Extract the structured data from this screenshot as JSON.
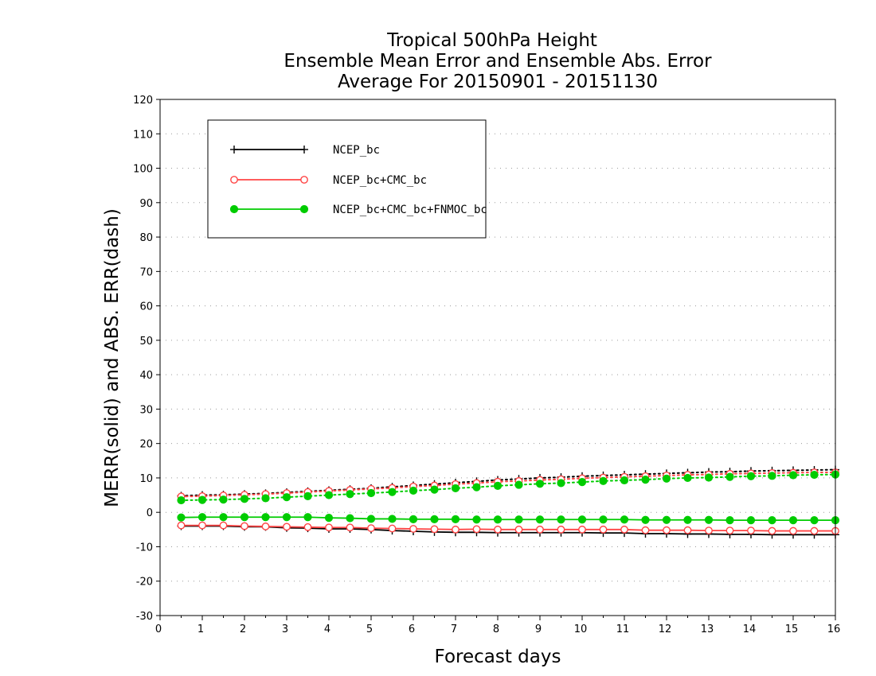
{
  "chart_data": {
    "type": "line",
    "title_lines": [
      "Tropical 500hPa Height",
      "Ensemble Mean Error and Ensemble Abs. Error",
      "Average For 20150901 - 20151130"
    ],
    "xlabel": "Forecast days",
    "ylabel": "MERR(solid) and ABS. ERR(dash)",
    "xlim": [
      0,
      16
    ],
    "ylim": [
      -30,
      120
    ],
    "xticks": [
      "0",
      "1",
      "2",
      "3",
      "4",
      "5",
      "6",
      "7",
      "8",
      "9",
      "10",
      "11",
      "12",
      "13",
      "14",
      "15",
      "16"
    ],
    "yticks": [
      "-30",
      "-20",
      "-10",
      "0",
      "10",
      "20",
      "30",
      "40",
      "50",
      "60",
      "70",
      "80",
      "90",
      "100",
      "110",
      "120"
    ],
    "grid": "horizontal dotted",
    "legend_position": "top-left",
    "x": [
      0.5,
      1,
      1.5,
      2,
      2.5,
      3,
      3.5,
      4,
      4.5,
      5,
      5.5,
      6,
      6.5,
      7,
      7.5,
      8,
      8.5,
      9,
      9.5,
      10,
      10.5,
      11,
      11.5,
      12,
      12.5,
      13,
      13.5,
      14,
      14.5,
      15,
      15.5,
      16
    ],
    "series": [
      {
        "name": "NCEP_bc",
        "color": "#000000",
        "marker": "plus",
        "mean_error": [
          -4,
          -4,
          -4,
          -4.2,
          -4.2,
          -4.5,
          -4.6,
          -4.8,
          -4.8,
          -5,
          -5.3,
          -5.5,
          -5.7,
          -5.8,
          -5.8,
          -5.9,
          -5.9,
          -5.9,
          -5.9,
          -5.9,
          -6,
          -6,
          -6.2,
          -6.2,
          -6.3,
          -6.3,
          -6.4,
          -6.4,
          -6.5,
          -6.5,
          -6.5,
          -6.5
        ],
        "abs_error": [
          4.8,
          5,
          5.1,
          5.3,
          5.5,
          5.8,
          6.1,
          6.4,
          6.7,
          7,
          7.4,
          7.8,
          8.2,
          8.6,
          9,
          9.4,
          9.7,
          10,
          10.2,
          10.5,
          10.7,
          10.9,
          11.1,
          11.3,
          11.5,
          11.7,
          11.8,
          12,
          12.1,
          12.2,
          12.3,
          12.4
        ]
      },
      {
        "name": "NCEP_bc+CMC_bc",
        "color": "#ff4444",
        "marker": "open-circle",
        "mean_error": [
          -3.8,
          -3.8,
          -3.8,
          -4,
          -4.1,
          -4.2,
          -4.3,
          -4.4,
          -4.4,
          -4.6,
          -4.7,
          -4.8,
          -4.9,
          -5,
          -4.9,
          -5,
          -5,
          -5,
          -5,
          -5,
          -5,
          -5,
          -5.2,
          -5.2,
          -5.2,
          -5.3,
          -5.3,
          -5.3,
          -5.4,
          -5.4,
          -5.4,
          -5.4
        ],
        "abs_error": [
          4.6,
          4.7,
          4.9,
          5.1,
          5.3,
          5.6,
          5.9,
          6.2,
          6.5,
          6.8,
          7.1,
          7.5,
          7.8,
          8.2,
          8.5,
          8.9,
          9.1,
          9.4,
          9.6,
          9.9,
          10.1,
          10.3,
          10.5,
          10.7,
          10.9,
          11,
          11.2,
          11.3,
          11.4,
          11.5,
          11.6,
          11.6
        ]
      },
      {
        "name": "NCEP_bc+CMC_bc+FNMOC_bc",
        "color": "#00cc00",
        "marker": "filled-circle",
        "mean_error": [
          -1.5,
          -1.4,
          -1.4,
          -1.4,
          -1.4,
          -1.4,
          -1.4,
          -1.6,
          -1.7,
          -1.9,
          -1.9,
          -2,
          -2,
          -2,
          -2.1,
          -2.1,
          -2.1,
          -2.1,
          -2.1,
          -2.1,
          -2.1,
          -2.1,
          -2.2,
          -2.2,
          -2.2,
          -2.2,
          -2.3,
          -2.3,
          -2.3,
          -2.3,
          -2.3,
          -2.3
        ],
        "abs_error": [
          3.5,
          3.6,
          3.7,
          3.9,
          4.1,
          4.4,
          4.7,
          5,
          5.3,
          5.6,
          5.9,
          6.3,
          6.6,
          7,
          7.3,
          7.7,
          8,
          8.3,
          8.5,
          8.8,
          9.1,
          9.3,
          9.5,
          9.8,
          10,
          10.1,
          10.3,
          10.5,
          10.6,
          10.8,
          10.9,
          11
        ]
      }
    ]
  }
}
